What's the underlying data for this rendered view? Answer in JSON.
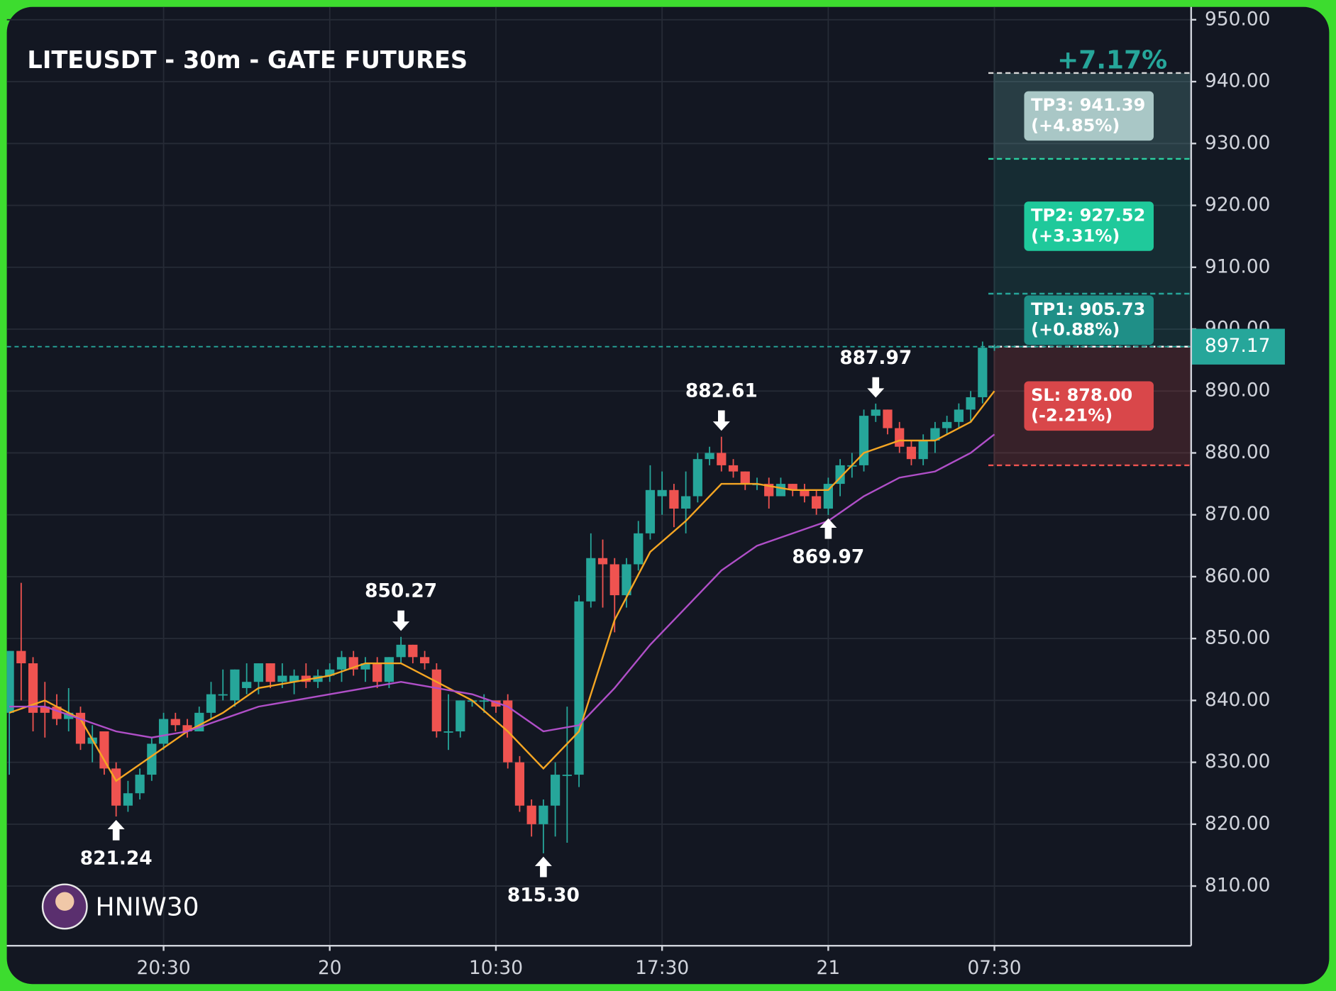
{
  "chart_data": {
    "type": "candlestick",
    "title": "LITEUSDT - 30m - GATE FUTURES",
    "gain_label": "+7.17%",
    "watermark": "HNIW30",
    "up_color": "#26a69a",
    "down_color": "#ef5350",
    "grid": true,
    "categories": [
      null,
      null,
      null,
      null,
      null,
      null,
      null,
      null,
      null,
      null,
      null,
      null,
      null,
      "20:30",
      null,
      null,
      null,
      null,
      null,
      null,
      null,
      null,
      null,
      null,
      null,
      null,
      null,
      "20",
      null,
      null,
      null,
      null,
      null,
      null,
      null,
      null,
      null,
      null,
      null,
      null,
      null,
      "10:30",
      null,
      null,
      null,
      null,
      null,
      null,
      null,
      null,
      null,
      null,
      null,
      null,
      null,
      "17:30",
      null,
      null,
      null,
      null,
      null,
      null,
      null,
      null,
      null,
      null,
      null,
      null,
      null,
      "21",
      null,
      null,
      null,
      null,
      null,
      null,
      null,
      null,
      null,
      null,
      null,
      null,
      null,
      "07:30"
    ],
    "open": [
      838,
      848,
      846,
      839,
      839,
      837,
      838,
      833,
      835,
      829,
      823,
      825,
      828,
      833,
      837,
      836,
      835,
      838,
      841,
      840,
      842,
      843,
      846,
      843,
      843,
      844,
      843,
      844,
      845,
      847,
      845,
      846,
      843,
      847,
      849,
      847,
      845,
      835,
      835,
      840,
      840,
      840,
      840,
      830,
      823,
      820,
      823,
      828,
      828,
      856,
      863,
      862,
      857,
      862,
      867,
      873,
      874,
      871,
      873,
      879,
      880,
      878,
      877,
      875,
      875,
      873,
      875,
      874,
      873,
      871,
      875,
      878,
      878,
      886,
      887,
      884,
      881,
      879,
      882,
      884,
      885,
      887,
      889,
      897
    ],
    "high": [
      848,
      859,
      847,
      843,
      841,
      842,
      839,
      836,
      835,
      830,
      827,
      829,
      834,
      838,
      838,
      837,
      839,
      843,
      845,
      845,
      846,
      846,
      846,
      846,
      845,
      846,
      845,
      846,
      848,
      848,
      847,
      847,
      847,
      850.27,
      849,
      848,
      846,
      841,
      840,
      840,
      841,
      840,
      841,
      831,
      824,
      824,
      830,
      839,
      857,
      867,
      866,
      863,
      863,
      869,
      878,
      877,
      875,
      877,
      880,
      881,
      882.61,
      879,
      877,
      876,
      876,
      876,
      875,
      875,
      874,
      876,
      879,
      880,
      887,
      887.97,
      887,
      885,
      882,
      883,
      885,
      886,
      888,
      890,
      898,
      897.5
    ],
    "low": [
      828,
      840,
      835,
      834,
      836,
      835,
      832,
      830,
      828,
      821.24,
      822,
      824,
      827,
      832,
      835,
      834,
      835,
      837,
      840,
      839,
      841,
      841,
      842,
      842,
      841,
      842,
      842,
      843,
      843,
      844,
      843,
      842,
      842,
      846,
      846,
      845,
      834,
      832,
      834,
      839,
      838,
      838,
      829,
      822,
      818,
      815.3,
      818,
      817,
      826,
      855,
      855,
      851,
      855,
      861,
      866,
      870,
      868,
      867,
      872,
      878,
      877,
      876,
      874,
      874,
      871,
      873,
      873,
      872,
      870,
      869.97,
      873,
      876,
      877,
      885,
      883,
      880,
      878,
      878,
      880,
      883,
      884,
      885,
      888,
      896.5
    ],
    "close": [
      848,
      846,
      838,
      838,
      837,
      838,
      833,
      834,
      829,
      823,
      825,
      828,
      833,
      837,
      836,
      835,
      838,
      841,
      841,
      845,
      843,
      846,
      843,
      844,
      844,
      843,
      844,
      845,
      847,
      845,
      846,
      843,
      847,
      849,
      847,
      846,
      835,
      835,
      840,
      840,
      840,
      839,
      830,
      823,
      820,
      823,
      828,
      828,
      856,
      863,
      862,
      857,
      862,
      867,
      874,
      874,
      871,
      873,
      879,
      880,
      878,
      877,
      875,
      875,
      873,
      875,
      874,
      873,
      871,
      875,
      878,
      878,
      886,
      887,
      884,
      881,
      879,
      882,
      884,
      885,
      887,
      889,
      897,
      897.17
    ],
    "lines": [
      {
        "color": "#f5a623",
        "x": [
          0,
          3,
          6,
          9,
          12,
          15,
          18,
          21,
          24,
          27,
          30,
          33,
          36,
          39,
          42,
          45,
          48,
          51,
          54,
          57,
          60,
          63,
          66,
          69,
          72,
          75,
          78,
          81,
          83
        ],
        "values": [
          838,
          840,
          837,
          827,
          831,
          835,
          838,
          842,
          843,
          844,
          846,
          846,
          843,
          840,
          835,
          829,
          835,
          853,
          864,
          869,
          875,
          875,
          874,
          874,
          880,
          882,
          882,
          885,
          890
        ]
      },
      {
        "color": "#b04fc8",
        "x": [
          0,
          3,
          6,
          9,
          12,
          15,
          18,
          21,
          24,
          27,
          30,
          33,
          36,
          39,
          42,
          45,
          48,
          51,
          54,
          57,
          60,
          63,
          66,
          69,
          72,
          75,
          78,
          81,
          83
        ],
        "values": [
          839,
          839,
          837,
          835,
          834,
          835,
          837,
          839,
          840,
          841,
          842,
          843,
          842,
          841,
          839,
          835,
          836,
          842,
          849,
          855,
          861,
          865,
          867,
          869,
          873,
          876,
          877,
          880,
          883
        ]
      }
    ],
    "annotations": [
      {
        "label": "821.24",
        "value": 821.24,
        "x": 9,
        "side": "below"
      },
      {
        "label": "850.27",
        "value": 850.27,
        "x": 33,
        "side": "above"
      },
      {
        "label": "815.30",
        "value": 815.3,
        "x": 45,
        "side": "below"
      },
      {
        "label": "882.61",
        "value": 882.61,
        "x": 60,
        "side": "above"
      },
      {
        "label": "869.97",
        "value": 869.97,
        "x": 69,
        "side": "below"
      },
      {
        "label": "887.97",
        "value": 887.97,
        "x": 73,
        "side": "above"
      }
    ],
    "levels": [
      {
        "label": "TP3: 941.39",
        "note": "(+4.85%)",
        "value": 941.39,
        "color": "#a9c7c6",
        "line": "#d7d7d7"
      },
      {
        "label": "TP2: 927.52",
        "note": "(+3.31%)",
        "value": 927.52,
        "color": "#1fc99b",
        "line": "#2bd0a0"
      },
      {
        "label": "TP1: 905.73",
        "note": "(+0.88%)",
        "value": 905.73,
        "color": "#1f8f87",
        "line": "#26a69a"
      },
      {
        "label": "SL: 878.00",
        "note": "(-2.21%)",
        "value": 878,
        "color": "#d9474a",
        "line": "#ef5350"
      }
    ],
    "ylim": [
      800.36,
      953.17
    ],
    "yticks": [
      {
        "value": 950,
        "label": "950.00"
      },
      {
        "value": 940,
        "label": "940.00"
      },
      {
        "value": 930,
        "label": "930.00"
      },
      {
        "value": 920,
        "label": "920.00"
      },
      {
        "value": 910,
        "label": "910.00"
      },
      {
        "value": 900,
        "label": "900.00"
      },
      {
        "value": 890,
        "label": "890.00"
      },
      {
        "value": 880,
        "label": "880.00"
      },
      {
        "value": 870,
        "label": "870.00"
      },
      {
        "value": 860,
        "label": "860.00"
      },
      {
        "value": 850,
        "label": "850.00"
      },
      {
        "value": 840,
        "label": "840.00"
      },
      {
        "value": 830,
        "label": "830.00"
      },
      {
        "value": 820,
        "label": "820.00"
      },
      {
        "value": 810,
        "label": "810.00"
      }
    ]
  }
}
